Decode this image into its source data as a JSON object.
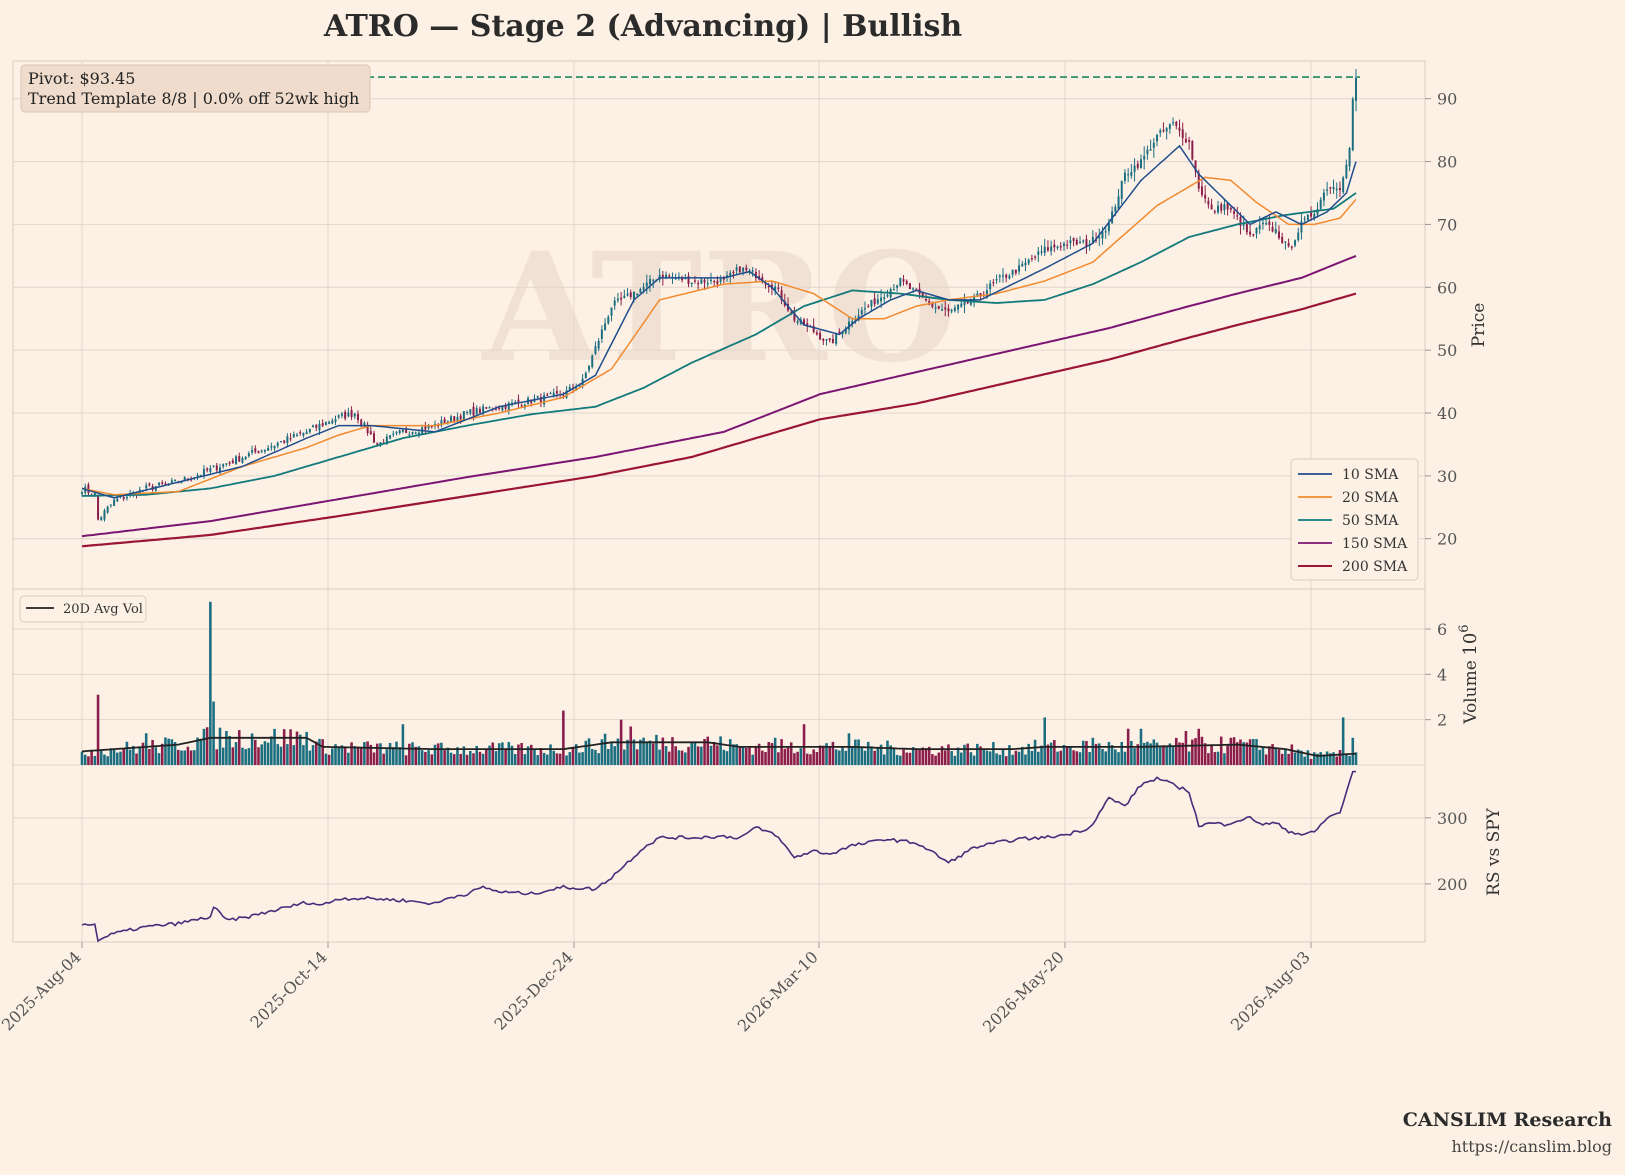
{
  "title": "ATRO  —  Stage 2 (Advancing)  |  Bullish",
  "watermark": "ATRO",
  "pivot_box": {
    "line1": "Pivot: $93.45",
    "line2": "Trend Template 8/8  |  0.0% off 52wk high"
  },
  "branding": {
    "name": "CANSLIM Research",
    "url": "https://canslim.blog"
  },
  "colors": {
    "background": "#fdf1e6",
    "up_candle": "#1a6e80",
    "down_candle": "#8b1e4a",
    "sma10": "#1f4e8c",
    "sma20": "#f28a2e",
    "sma50": "#127a7a",
    "sma150": "#7b1572",
    "sma200": "#9b1535",
    "pivot_line": "#1a8a5a",
    "avg_vol": "#222222",
    "rs_line": "#4a2b7a",
    "grid": "#e2d6cc"
  },
  "chart_data": [
    {
      "type": "candlestick",
      "panel": "price",
      "ylabel": "Price",
      "ylim": [
        12,
        96
      ],
      "yticks": [
        20,
        30,
        40,
        50,
        60,
        70,
        80,
        90
      ],
      "x_ticks": [
        "2025-Aug-04",
        "2025-Oct-14",
        "2025-Dec-24",
        "2026-Mar-10",
        "2026-May-20",
        "2026-Aug-03"
      ],
      "pivot": 93.45,
      "legend": [
        "10 SMA",
        "20 SMA",
        "50 SMA",
        "150 SMA",
        "200 SMA"
      ],
      "legend_position": "lower-right",
      "close_anchors": [
        [
          0,
          28
        ],
        [
          4,
          27
        ],
        [
          5,
          23
        ],
        [
          10,
          26
        ],
        [
          20,
          28
        ],
        [
          30,
          29
        ],
        [
          40,
          31
        ],
        [
          50,
          33
        ],
        [
          60,
          35
        ],
        [
          70,
          37
        ],
        [
          78,
          39
        ],
        [
          85,
          40
        ],
        [
          92,
          35
        ],
        [
          100,
          37
        ],
        [
          110,
          38
        ],
        [
          120,
          40
        ],
        [
          130,
          41
        ],
        [
          140,
          42
        ],
        [
          150,
          43
        ],
        [
          156,
          45
        ],
        [
          165,
          57
        ],
        [
          175,
          60
        ],
        [
          180,
          62
        ],
        [
          190,
          61
        ],
        [
          200,
          61
        ],
        [
          205,
          63
        ],
        [
          210,
          62
        ],
        [
          216,
          60
        ],
        [
          222,
          55
        ],
        [
          228,
          53
        ],
        [
          233,
          51
        ],
        [
          240,
          55
        ],
        [
          245,
          57
        ],
        [
          250,
          59
        ],
        [
          255,
          61
        ],
        [
          260,
          59
        ],
        [
          265,
          57
        ],
        [
          270,
          56
        ],
        [
          278,
          58
        ],
        [
          285,
          61
        ],
        [
          292,
          63
        ],
        [
          300,
          66
        ],
        [
          307,
          67
        ],
        [
          314,
          67
        ],
        [
          320,
          70
        ],
        [
          325,
          78
        ],
        [
          330,
          80
        ],
        [
          335,
          84
        ],
        [
          340,
          86
        ],
        [
          345,
          83
        ],
        [
          348,
          76
        ],
        [
          352,
          72
        ],
        [
          356,
          73
        ],
        [
          360,
          71
        ],
        [
          364,
          68
        ],
        [
          368,
          70
        ],
        [
          372,
          69
        ],
        [
          376,
          66
        ],
        [
          380,
          70
        ],
        [
          384,
          72
        ],
        [
          388,
          76
        ],
        [
          392,
          76
        ],
        [
          395,
          82
        ],
        [
          396,
          90
        ],
        [
          397,
          93
        ]
      ],
      "sma10_anchors": [
        [
          0,
          28
        ],
        [
          10,
          26.5
        ],
        [
          30,
          29
        ],
        [
          50,
          31.5
        ],
        [
          70,
          36
        ],
        [
          80,
          38
        ],
        [
          90,
          38
        ],
        [
          110,
          37
        ],
        [
          130,
          41
        ],
        [
          150,
          43
        ],
        [
          160,
          46
        ],
        [
          172,
          58
        ],
        [
          180,
          61.5
        ],
        [
          200,
          61.5
        ],
        [
          208,
          62.5
        ],
        [
          215,
          60
        ],
        [
          225,
          54
        ],
        [
          236,
          52.5
        ],
        [
          242,
          55
        ],
        [
          252,
          58
        ],
        [
          260,
          59.5
        ],
        [
          270,
          58
        ],
        [
          280,
          58
        ],
        [
          300,
          63
        ],
        [
          315,
          67
        ],
        [
          330,
          77
        ],
        [
          342,
          82.5
        ],
        [
          348,
          78
        ],
        [
          356,
          74
        ],
        [
          364,
          70
        ],
        [
          372,
          72
        ],
        [
          380,
          70
        ],
        [
          388,
          72
        ],
        [
          394,
          75
        ],
        [
          397,
          80
        ]
      ],
      "sma20_anchors": [
        [
          0,
          28
        ],
        [
          10,
          27
        ],
        [
          30,
          27.5
        ],
        [
          50,
          31.5
        ],
        [
          70,
          34.5
        ],
        [
          80,
          36.5
        ],
        [
          90,
          38
        ],
        [
          110,
          38
        ],
        [
          130,
          40
        ],
        [
          150,
          42.5
        ],
        [
          165,
          47
        ],
        [
          180,
          58
        ],
        [
          200,
          60.5
        ],
        [
          215,
          61
        ],
        [
          228,
          59
        ],
        [
          240,
          55
        ],
        [
          250,
          55
        ],
        [
          260,
          57
        ],
        [
          270,
          58
        ],
        [
          285,
          59
        ],
        [
          300,
          61
        ],
        [
          315,
          64
        ],
        [
          335,
          73
        ],
        [
          350,
          77.5
        ],
        [
          358,
          77
        ],
        [
          366,
          73.5
        ],
        [
          376,
          70
        ],
        [
          384,
          70
        ],
        [
          392,
          71
        ],
        [
          397,
          74
        ]
      ],
      "sma50_anchors": [
        [
          0,
          26.8
        ],
        [
          20,
          27
        ],
        [
          40,
          28
        ],
        [
          60,
          30
        ],
        [
          80,
          33
        ],
        [
          100,
          36
        ],
        [
          120,
          38
        ],
        [
          140,
          39.8
        ],
        [
          160,
          41
        ],
        [
          175,
          44
        ],
        [
          190,
          48
        ],
        [
          210,
          52.5
        ],
        [
          225,
          57
        ],
        [
          240,
          59.5
        ],
        [
          255,
          59
        ],
        [
          270,
          58
        ],
        [
          285,
          57.5
        ],
        [
          300,
          58
        ],
        [
          315,
          60.5
        ],
        [
          330,
          64
        ],
        [
          345,
          68
        ],
        [
          360,
          70
        ],
        [
          375,
          71.5
        ],
        [
          390,
          72.5
        ],
        [
          397,
          75
        ]
      ],
      "sma150_anchors": [
        [
          0,
          20.4
        ],
        [
          40,
          22.8
        ],
        [
          80,
          26.3
        ],
        [
          120,
          29.8
        ],
        [
          160,
          33
        ],
        [
          200,
          37
        ],
        [
          230,
          43
        ],
        [
          260,
          46.5
        ],
        [
          290,
          50
        ],
        [
          320,
          53.5
        ],
        [
          345,
          57
        ],
        [
          360,
          59
        ],
        [
          380,
          61.5
        ],
        [
          397,
          65
        ]
      ],
      "sma200_anchors": [
        [
          0,
          18.8
        ],
        [
          40,
          20.6
        ],
        [
          80,
          23.6
        ],
        [
          120,
          26.8
        ],
        [
          160,
          30
        ],
        [
          190,
          33
        ],
        [
          230,
          39
        ],
        [
          260,
          41.5
        ],
        [
          290,
          45
        ],
        [
          320,
          48.5
        ],
        [
          345,
          52
        ],
        [
          360,
          54
        ],
        [
          380,
          56.5
        ],
        [
          397,
          59
        ]
      ]
    },
    {
      "type": "bar",
      "panel": "volume",
      "ylabel": "Volume",
      "scale_label": "10^6",
      "yticks": [
        2,
        4,
        6
      ],
      "ylim": [
        0,
        7.5
      ],
      "legend": [
        "20D Avg Vol"
      ],
      "legend_position": "upper-left",
      "spikes": [
        [
          5,
          3.1
        ],
        [
          20,
          1.4
        ],
        [
          40,
          7.2
        ],
        [
          41,
          2.8
        ],
        [
          100,
          1.8
        ],
        [
          150,
          2.4
        ],
        [
          168,
          2.0
        ],
        [
          171,
          1.7
        ],
        [
          216,
          1.2
        ],
        [
          225,
          1.8
        ],
        [
          239,
          1.4
        ],
        [
          300,
          2.1
        ],
        [
          315,
          1.2
        ],
        [
          326,
          1.6
        ],
        [
          330,
          1.6
        ],
        [
          344,
          1.5
        ],
        [
          348,
          1.6
        ],
        [
          358,
          1.2
        ],
        [
          393,
          2.1
        ],
        [
          396,
          1.2
        ]
      ],
      "avg_anchors": [
        [
          0,
          0.6
        ],
        [
          30,
          0.9
        ],
        [
          40,
          1.2
        ],
        [
          55,
          1.2
        ],
        [
          70,
          1.2
        ],
        [
          75,
          0.8
        ],
        [
          110,
          0.7
        ],
        [
          150,
          0.7
        ],
        [
          165,
          1.0
        ],
        [
          180,
          1.0
        ],
        [
          195,
          1.0
        ],
        [
          205,
          0.8
        ],
        [
          240,
          0.8
        ],
        [
          260,
          0.7
        ],
        [
          290,
          0.7
        ],
        [
          300,
          0.8
        ],
        [
          330,
          0.8
        ],
        [
          360,
          0.9
        ],
        [
          375,
          0.7
        ],
        [
          385,
          0.4
        ],
        [
          397,
          0.5
        ]
      ]
    },
    {
      "type": "line",
      "panel": "rs",
      "ylabel": "RS vs SPY",
      "yticks": [
        200,
        300
      ],
      "ylim": [
        112,
        380
      ],
      "rs_anchors": [
        [
          0,
          140
        ],
        [
          4,
          138
        ],
        [
          5,
          115
        ],
        [
          10,
          125
        ],
        [
          20,
          135
        ],
        [
          30,
          140
        ],
        [
          40,
          150
        ],
        [
          41,
          165
        ],
        [
          45,
          145
        ],
        [
          50,
          148
        ],
        [
          60,
          160
        ],
        [
          70,
          172
        ],
        [
          75,
          168
        ],
        [
          80,
          178
        ],
        [
          90,
          178
        ],
        [
          100,
          175
        ],
        [
          110,
          170
        ],
        [
          115,
          180
        ],
        [
          120,
          185
        ],
        [
          125,
          195
        ],
        [
          130,
          188
        ],
        [
          140,
          185
        ],
        [
          150,
          195
        ],
        [
          160,
          192
        ],
        [
          165,
          210
        ],
        [
          175,
          255
        ],
        [
          180,
          270
        ],
        [
          190,
          270
        ],
        [
          200,
          272
        ],
        [
          205,
          270
        ],
        [
          210,
          285
        ],
        [
          216,
          275
        ],
        [
          222,
          240
        ],
        [
          228,
          250
        ],
        [
          233,
          245
        ],
        [
          240,
          258
        ],
        [
          245,
          262
        ],
        [
          250,
          268
        ],
        [
          255,
          265
        ],
        [
          260,
          262
        ],
        [
          265,
          248
        ],
        [
          270,
          232
        ],
        [
          278,
          255
        ],
        [
          285,
          262
        ],
        [
          292,
          268
        ],
        [
          300,
          270
        ],
        [
          307,
          275
        ],
        [
          314,
          285
        ],
        [
          320,
          330
        ],
        [
          325,
          318
        ],
        [
          330,
          350
        ],
        [
          335,
          360
        ],
        [
          340,
          350
        ],
        [
          345,
          340
        ],
        [
          348,
          288
        ],
        [
          352,
          292
        ],
        [
          356,
          290
        ],
        [
          360,
          296
        ],
        [
          364,
          300
        ],
        [
          368,
          290
        ],
        [
          372,
          292
        ],
        [
          376,
          280
        ],
        [
          380,
          275
        ],
        [
          384,
          278
        ],
        [
          388,
          300
        ],
        [
          392,
          308
        ],
        [
          395,
          355
        ],
        [
          396,
          368
        ],
        [
          397,
          370
        ]
      ]
    }
  ]
}
